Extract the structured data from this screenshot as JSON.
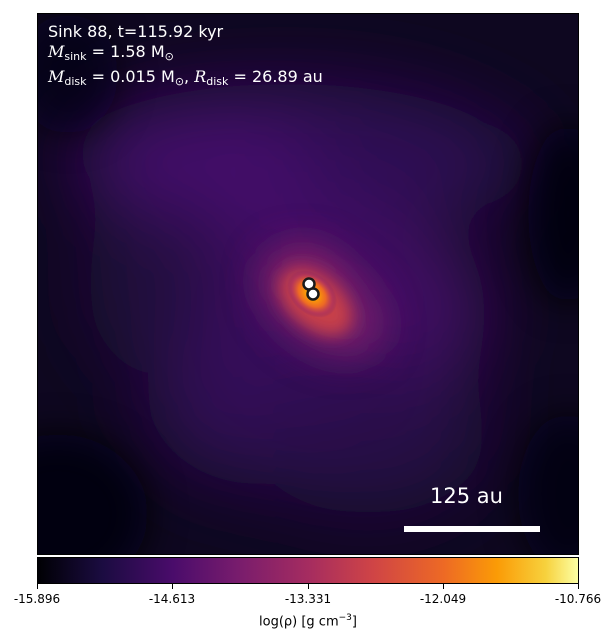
{
  "info": {
    "sink_line": "Sink 88, t=115.92 kyr",
    "msink_symbol": "M",
    "msink_sub": "sink",
    "msink_value": " = 1.58 M",
    "msink_unit_sub": "⊙",
    "mdisk_symbol": "M",
    "mdisk_sub": "disk",
    "mdisk_value": " = 0.015 M",
    "mdisk_unit_sub": "⊙",
    "rdisk_sep": ", ",
    "rdisk_symbol": "R",
    "rdisk_sub": "disk",
    "rdisk_value": " = 26.89 au"
  },
  "scalebar": {
    "label": "125 au"
  },
  "colorbar": {
    "ticks": [
      "-15.896",
      "-14.613",
      "-13.331",
      "-12.049",
      "-10.766"
    ],
    "label_prefix": "log(ρ) [g cm",
    "label_exp": "−3",
    "label_suffix": "]",
    "colormap": "inferno"
  }
}
